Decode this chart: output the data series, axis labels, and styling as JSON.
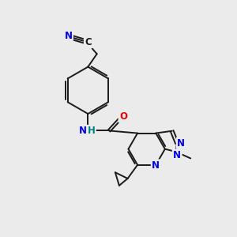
{
  "bg_color": "#ebebeb",
  "bond_color": "#1a1a1a",
  "bond_width": 1.4,
  "atom_colors": {
    "N": "#0000ee",
    "O": "#ee0000",
    "C": "#1a1a1a",
    "H": "#008080"
  },
  "font_size": 8.5,
  "dbo": 0.055,
  "tbo": 0.052
}
